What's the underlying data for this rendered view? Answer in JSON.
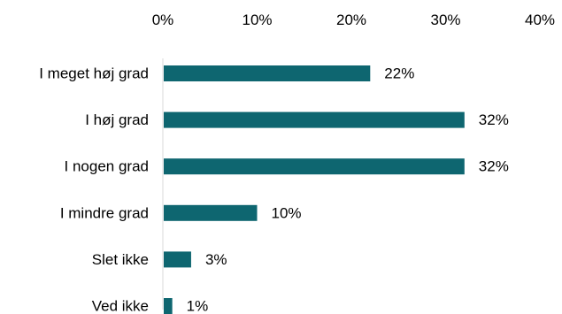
{
  "chart_data": {
    "type": "bar",
    "orientation": "horizontal",
    "categories": [
      "I meget høj grad",
      "I høj grad",
      "I nogen grad",
      "I mindre grad",
      "Slet ikke",
      "Ved ikke"
    ],
    "values": [
      22,
      32,
      32,
      10,
      3,
      1
    ],
    "value_labels": [
      "22%",
      "32%",
      "32%",
      "10%",
      "3%",
      "1%"
    ],
    "x_ticks": [
      0,
      10,
      20,
      30,
      40
    ],
    "x_tick_labels": [
      "0%",
      "10%",
      "20%",
      "30%",
      "40%"
    ],
    "xlim": [
      0,
      40
    ],
    "x_axis_position": "top",
    "grid": false,
    "legend": "none",
    "bar_color": "#0e6670",
    "axis_color": "#d9d9d9"
  }
}
